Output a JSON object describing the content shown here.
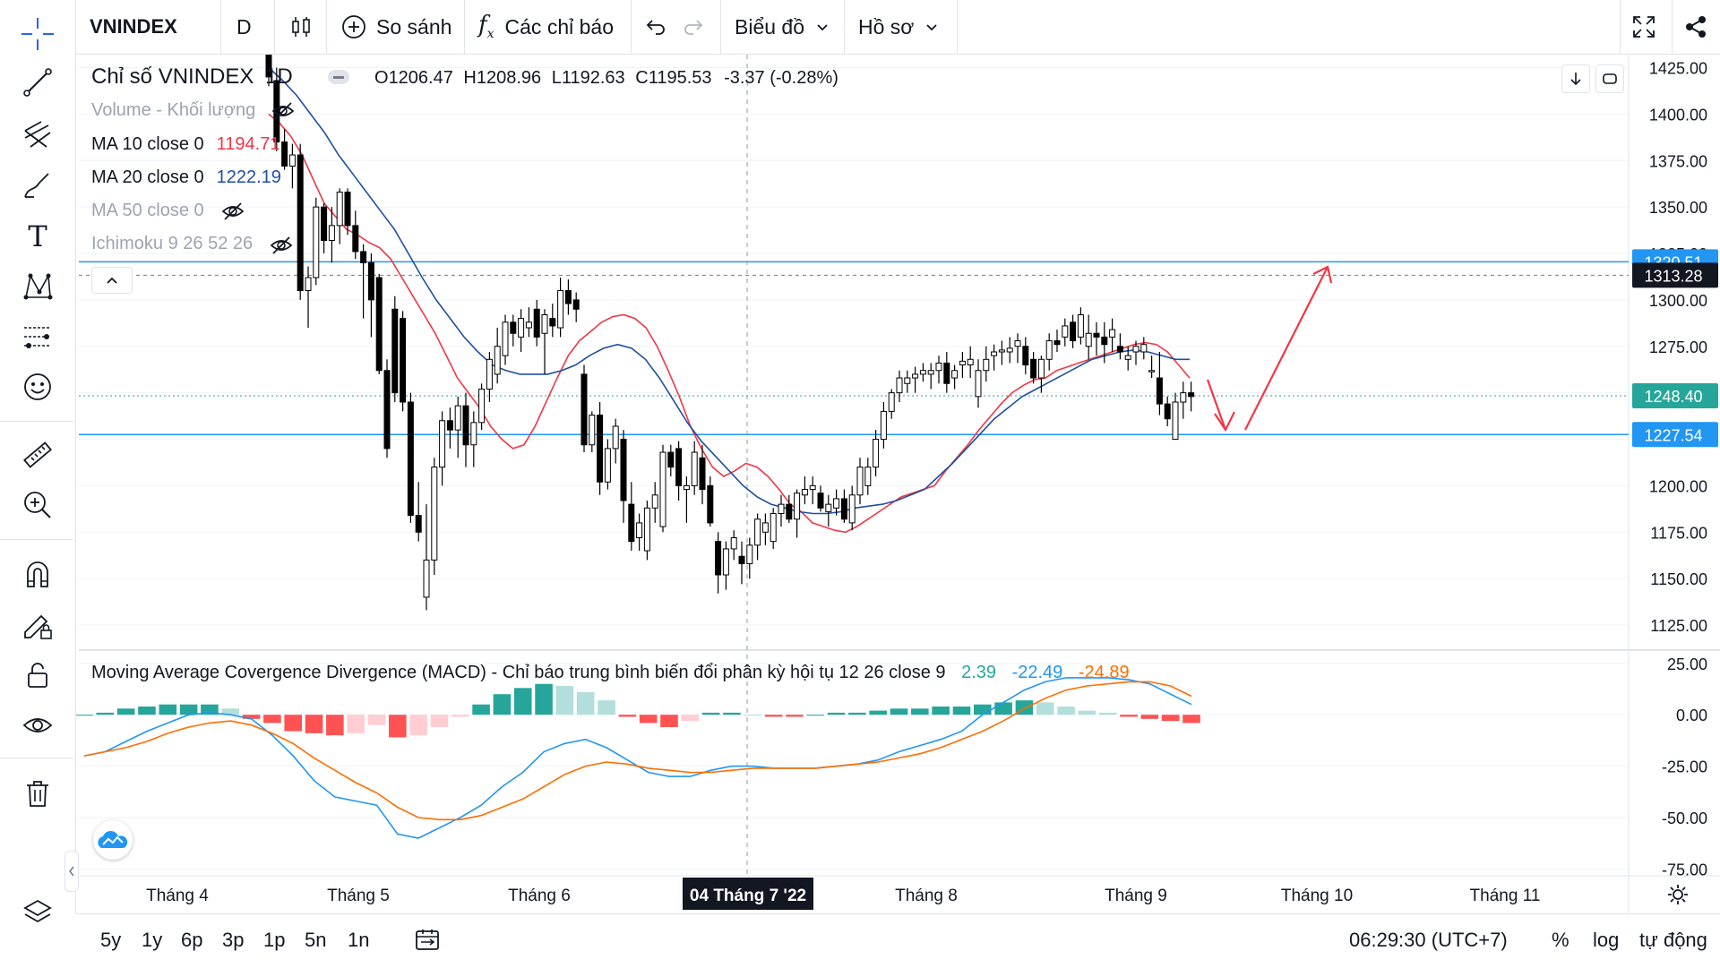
{
  "toolbar": {
    "symbol": "VNINDEX",
    "interval": "D",
    "compare_label": "So sánh",
    "indicators_label": "Các chỉ báo",
    "chart_menu_label": "Biểu đồ",
    "profile_menu_label": "Hồ sơ"
  },
  "legend": {
    "title": "Chỉ số VNINDEX",
    "interval": "1D",
    "ohlc_open_label": "O",
    "ohlc_open": "1206.47",
    "ohlc_high_label": "H",
    "ohlc_high": "1208.96",
    "ohlc_low_label": "L",
    "ohlc_low": "1192.63",
    "ohlc_close_label": "C",
    "ohlc_close": "1195.53",
    "change": "-3.37 (-0.28%)",
    "volume_label": "Volume - Khối lượng",
    "ma10_label": "MA 10 close 0",
    "ma10_value": "1194.71",
    "ma20_label": "MA 20 close 0",
    "ma20_value": "1222.19",
    "ma50_label": "MA 50 close 0",
    "ichimoku_label": "Ichimoku 9 26 52 26",
    "macd_label": "Moving Average Covergence Divergence (MACD) - Chỉ báo trung bình biến đổi phân kỳ hội tụ 12 26 close 9",
    "macd_hist": "2.39",
    "macd_line": "-22.49",
    "macd_signal": "-24.89"
  },
  "price_axis": {
    "ticks": [
      "1425.00",
      "1400.00",
      "1375.00",
      "1350.00",
      "1325.00",
      "1300.00",
      "1275.00",
      "1250.00",
      "1225.00",
      "1200.00",
      "1175.00",
      "1150.00",
      "1125.00"
    ],
    "badge_top_hidden": "1320.51",
    "badge_dashed": "1313.28",
    "badge_current": "1248.40",
    "badge_support": "1227.54"
  },
  "macd_axis": {
    "ticks": [
      "25.00",
      "0.00",
      "-25.00",
      "-50.00",
      "-75.00"
    ]
  },
  "time_axis": {
    "labels": [
      "Tháng 4",
      "Tháng 5",
      "Tháng 6",
      "Tháng 8",
      "Tháng 9",
      "Tháng 10",
      "Tháng 11"
    ],
    "crosshair_label": "04 Tháng 7 '22"
  },
  "bottom": {
    "ranges": [
      "5y",
      "1y",
      "6p",
      "3p",
      "1p",
      "5n",
      "1n"
    ],
    "clock": "06:29:30 (UTC+7)",
    "percent_label": "%",
    "log_label": "log",
    "auto_label": "tự động"
  },
  "colors": {
    "up": "#ffffff",
    "down": "#000000",
    "ma10": "#f23645",
    "ma20": "#1e4fa3",
    "hline": "#2196f3",
    "macd_line": "#2196f3",
    "macd_signal": "#ff6d00",
    "hist_pos_strong": "#26a69a",
    "hist_pos_weak": "#b2dfdb",
    "hist_neg_strong": "#ff5252",
    "hist_neg_weak": "#ffcdd2",
    "arrow": "#f23645"
  },
  "chart_data": {
    "type": "candlestick",
    "title": "Chỉ số VNINDEX",
    "interval": "1D",
    "ylim": [
      1112,
      1432
    ],
    "horizontal_lines": [
      1320.51,
      1313.28,
      1248.4,
      1227.54
    ],
    "candles": [
      [
        1432,
        1440,
        1415,
        1420
      ],
      [
        1418,
        1425,
        1380,
        1385
      ],
      [
        1385,
        1392,
        1370,
        1372
      ],
      [
        1372,
        1384,
        1360,
        1378
      ],
      [
        1378,
        1384,
        1300,
        1305
      ],
      [
        1305,
        1318,
        1285,
        1312
      ],
      [
        1312,
        1355,
        1308,
        1350
      ],
      [
        1350,
        1352,
        1325,
        1332
      ],
      [
        1332,
        1350,
        1320,
        1340
      ],
      [
        1340,
        1360,
        1330,
        1358
      ],
      [
        1358,
        1360,
        1335,
        1340
      ],
      [
        1340,
        1348,
        1322,
        1326
      ],
      [
        1326,
        1330,
        1290,
        1320
      ],
      [
        1320,
        1325,
        1280,
        1300
      ],
      [
        1312,
        1314,
        1260,
        1262
      ],
      [
        1262,
        1268,
        1215,
        1220
      ],
      [
        1295,
        1302,
        1245,
        1250
      ],
      [
        1290,
        1294,
        1240,
        1245
      ],
      [
        1245,
        1250,
        1180,
        1184
      ],
      [
        1184,
        1202,
        1170,
        1175
      ],
      [
        1140,
        1190,
        1133,
        1160
      ],
      [
        1160,
        1215,
        1152,
        1210
      ],
      [
        1210,
        1240,
        1200,
        1235
      ],
      [
        1235,
        1242,
        1220,
        1230
      ],
      [
        1230,
        1248,
        1215,
        1243
      ],
      [
        1243,
        1250,
        1210,
        1222
      ],
      [
        1222,
        1240,
        1210,
        1234
      ],
      [
        1234,
        1255,
        1230,
        1252
      ],
      [
        1252,
        1272,
        1245,
        1268
      ],
      [
        1260,
        1285,
        1255,
        1275
      ],
      [
        1270,
        1292,
        1265,
        1288
      ],
      [
        1288,
        1292,
        1275,
        1282
      ],
      [
        1280,
        1295,
        1272,
        1290
      ],
      [
        1285,
        1296,
        1280,
        1288
      ],
      [
        1295,
        1300,
        1275,
        1280
      ],
      [
        1282,
        1295,
        1260,
        1292
      ],
      [
        1290,
        1298,
        1280,
        1286
      ],
      [
        1285,
        1312,
        1280,
        1305
      ],
      [
        1305,
        1311,
        1292,
        1298
      ],
      [
        1300,
        1304,
        1288,
        1295
      ],
      [
        1260,
        1265,
        1218,
        1222
      ],
      [
        1222,
        1240,
        1218,
        1238
      ],
      [
        1238,
        1245,
        1195,
        1202
      ],
      [
        1202,
        1225,
        1198,
        1220
      ],
      [
        1220,
        1236,
        1212,
        1232
      ],
      [
        1225,
        1230,
        1180,
        1192
      ],
      [
        1190,
        1202,
        1165,
        1170
      ],
      [
        1172,
        1185,
        1165,
        1180
      ],
      [
        1165,
        1192,
        1160,
        1188
      ],
      [
        1188,
        1202,
        1180,
        1195
      ],
      [
        1178,
        1222,
        1175,
        1218
      ],
      [
        1218,
        1222,
        1205,
        1210
      ],
      [
        1220,
        1224,
        1192,
        1200
      ],
      [
        1198,
        1205,
        1180,
        1200
      ],
      [
        1200,
        1224,
        1195,
        1218
      ],
      [
        1215,
        1222,
        1190,
        1198
      ],
      [
        1200,
        1205,
        1178,
        1180
      ],
      [
        1170,
        1175,
        1142,
        1152
      ],
      [
        1152,
        1170,
        1144,
        1166
      ],
      [
        1166,
        1176,
        1160,
        1172
      ],
      [
        1162,
        1170,
        1147,
        1158
      ],
      [
        1158,
        1172,
        1150,
        1168
      ],
      [
        1168,
        1185,
        1160,
        1182
      ],
      [
        1175,
        1185,
        1168,
        1180
      ],
      [
        1170,
        1188,
        1166,
        1185
      ],
      [
        1185,
        1195,
        1178,
        1190
      ],
      [
        1190,
        1195,
        1180,
        1182
      ],
      [
        1182,
        1198,
        1172,
        1196
      ],
      [
        1195,
        1205,
        1190,
        1198
      ],
      [
        1198,
        1205,
        1190,
        1200
      ],
      [
        1196,
        1200,
        1186,
        1188
      ],
      [
        1186,
        1195,
        1178,
        1190
      ],
      [
        1188,
        1198,
        1184,
        1193
      ],
      [
        1193,
        1198,
        1180,
        1182
      ],
      [
        1180,
        1200,
        1176,
        1195
      ],
      [
        1195,
        1215,
        1190,
        1210
      ],
      [
        1200,
        1215,
        1195,
        1210
      ],
      [
        1210,
        1230,
        1205,
        1225
      ],
      [
        1225,
        1245,
        1220,
        1240
      ],
      [
        1240,
        1252,
        1236,
        1250
      ],
      [
        1250,
        1262,
        1245,
        1258
      ],
      [
        1255,
        1262,
        1250,
        1258
      ],
      [
        1258,
        1264,
        1250,
        1260
      ],
      [
        1260,
        1266,
        1256,
        1262
      ],
      [
        1260,
        1266,
        1252,
        1262
      ],
      [
        1262,
        1270,
        1255,
        1266
      ],
      [
        1266,
        1272,
        1250,
        1255
      ],
      [
        1258,
        1265,
        1252,
        1262
      ],
      [
        1265,
        1272,
        1258,
        1267
      ],
      [
        1265,
        1275,
        1258,
        1268
      ],
      [
        1248,
        1268,
        1242,
        1262
      ],
      [
        1262,
        1275,
        1256,
        1268
      ],
      [
        1270,
        1276,
        1262,
        1272
      ],
      [
        1272,
        1278,
        1265,
        1273
      ],
      [
        1272,
        1280,
        1266,
        1274
      ],
      [
        1275,
        1282,
        1266,
        1278
      ],
      [
        1275,
        1280,
        1260,
        1265
      ],
      [
        1268,
        1272,
        1255,
        1258
      ],
      [
        1258,
        1270,
        1250,
        1268
      ],
      [
        1268,
        1282,
        1262,
        1278
      ],
      [
        1278,
        1284,
        1272,
        1276
      ],
      [
        1280,
        1290,
        1275,
        1286
      ],
      [
        1288,
        1292,
        1274,
        1278
      ],
      [
        1280,
        1296,
        1276,
        1292
      ],
      [
        1275,
        1292,
        1268,
        1282
      ],
      [
        1282,
        1288,
        1270,
        1280
      ],
      [
        1280,
        1288,
        1266,
        1276
      ],
      [
        1280,
        1290,
        1272,
        1284
      ],
      [
        1275,
        1282,
        1268,
        1272
      ],
      [
        1268,
        1275,
        1262,
        1270
      ],
      [
        1272,
        1278,
        1265,
        1275
      ],
      [
        1272,
        1280,
        1268,
        1276
      ],
      [
        1262,
        1270,
        1258,
        1262
      ],
      [
        1258,
        1272,
        1238,
        1244
      ],
      [
        1244,
        1248,
        1232,
        1236
      ],
      [
        1225,
        1250,
        1228,
        1245
      ],
      [
        1245,
        1256,
        1236,
        1250
      ],
      [
        1250,
        1256,
        1240,
        1248
      ]
    ],
    "ma10": [
      1400,
      1395,
      1388,
      1378,
      1365,
      1352,
      1345,
      1338,
      1335,
      1331,
      1328,
      1322,
      1312,
      1302,
      1292,
      1282,
      1270,
      1258,
      1250,
      1242,
      1232,
      1225,
      1220,
      1222,
      1232,
      1245,
      1258,
      1270,
      1278,
      1283,
      1288,
      1291,
      1292,
      1290,
      1285,
      1275,
      1262,
      1248,
      1232,
      1220,
      1210,
      1205,
      1208,
      1212,
      1210,
      1205,
      1198,
      1190,
      1186,
      1180,
      1178,
      1176,
      1175,
      1178,
      1182,
      1186,
      1190,
      1194,
      1196,
      1198,
      1200,
      1208,
      1215,
      1222,
      1230,
      1237,
      1244,
      1250,
      1254,
      1257,
      1258,
      1262,
      1264,
      1266,
      1268,
      1270,
      1272,
      1274,
      1276,
      1277,
      1276,
      1272,
      1265,
      1258
    ],
    "ma20": [
      1425,
      1418,
      1410,
      1400,
      1390,
      1378,
      1368,
      1358,
      1348,
      1338,
      1325,
      1312,
      1300,
      1290,
      1280,
      1272,
      1265,
      1262,
      1260,
      1260,
      1260,
      1262,
      1265,
      1270,
      1274,
      1276,
      1274,
      1268,
      1258,
      1246,
      1234,
      1224,
      1216,
      1208,
      1200,
      1194,
      1190,
      1188,
      1186,
      1185,
      1185,
      1186,
      1188,
      1189,
      1190,
      1192,
      1195,
      1198,
      1205,
      1212,
      1220,
      1228,
      1236,
      1242,
      1248,
      1252,
      1256,
      1260,
      1264,
      1268,
      1270,
      1272,
      1273,
      1272,
      1270,
      1268,
      1268
    ],
    "macd": {
      "ylim": [
        -77,
        31
      ],
      "line": [
        -20,
        -18,
        -13,
        -8,
        -4,
        0,
        1,
        0,
        -2,
        -10,
        -20,
        -32,
        -40,
        -42,
        -44,
        -58,
        -60,
        -55,
        -50,
        -44,
        -35,
        -28,
        -18,
        -14,
        -12,
        -16,
        -22,
        -28,
        -30,
        -30,
        -27,
        -25,
        -25,
        -26,
        -26,
        -26,
        -25,
        -24,
        -22,
        -18,
        -15,
        -12,
        -8,
        0,
        6,
        12,
        16,
        18,
        18,
        18,
        17,
        15,
        10,
        5
      ],
      "signal": [
        -20,
        -18,
        -16,
        -13,
        -9,
        -6,
        -4,
        -3,
        -5,
        -9,
        -14,
        -21,
        -27,
        -33,
        -38,
        -45,
        -50,
        -51,
        -51,
        -49,
        -45,
        -41,
        -35,
        -29,
        -25,
        -23,
        -24,
        -26,
        -27,
        -28,
        -28,
        -27,
        -26,
        -26,
        -26,
        -26,
        -25,
        -24,
        -23,
        -21,
        -19,
        -16,
        -12,
        -8,
        -3,
        3,
        8,
        12,
        14,
        15,
        16,
        16,
        14,
        9
      ],
      "hist": [
        0,
        1,
        3,
        4,
        5,
        5,
        5,
        3,
        -2,
        -4,
        -8,
        -9,
        -10,
        -9,
        -5,
        -11,
        -10,
        -6,
        -1,
        5,
        10,
        13,
        15,
        14,
        11,
        7,
        -1,
        -4,
        -6,
        -3,
        1,
        1,
        0,
        -1,
        -1,
        0,
        1,
        1,
        2,
        3,
        3,
        4,
        4,
        5,
        6,
        7,
        6,
        4,
        2,
        1,
        -1,
        -2,
        -3,
        -4
      ]
    }
  }
}
